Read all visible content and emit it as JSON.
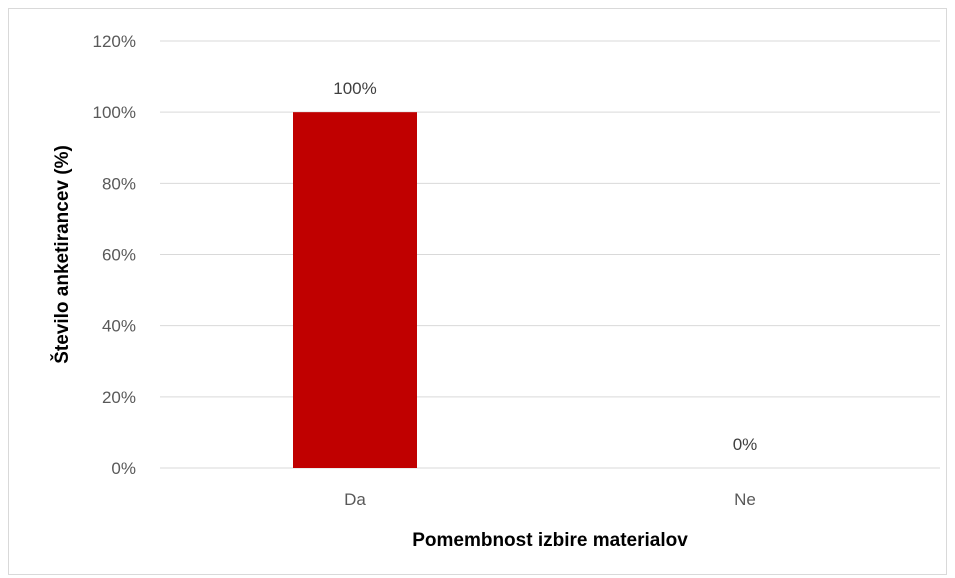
{
  "chart_data": {
    "type": "bar",
    "categories": [
      "Da",
      "Ne"
    ],
    "values": [
      100,
      0
    ],
    "value_suffix": "%",
    "data_labels": [
      "100%",
      "0%"
    ],
    "xlabel": "Pomembnost izbire materialov",
    "ylabel": "Število anketirancev  (%)",
    "ylim": [
      0,
      120
    ],
    "yticks": [
      0,
      20,
      40,
      60,
      80,
      100,
      120
    ],
    "ytick_labels": [
      "0%",
      "20%",
      "40%",
      "60%",
      "80%",
      "100%",
      "120%"
    ],
    "grid": true,
    "legend": "none",
    "bar_color": "#C00000",
    "gridline_color": "#D9D9D9"
  }
}
